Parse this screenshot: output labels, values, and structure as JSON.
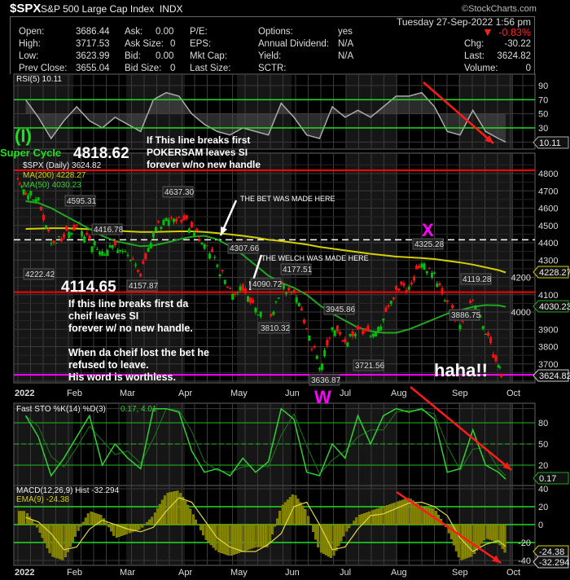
{
  "header": {
    "symbol": "$SPX",
    "name": "S&P 500 Large Cap Index",
    "exchange": "INDX",
    "brand": "©StockCharts.com"
  },
  "quote": {
    "datetime": "Tuesday  27-Sep-2022  1:56 pm",
    "open_label": "Open:",
    "open": "3686.44",
    "high_label": "High:",
    "high": "3717.53",
    "low_label": "Low:",
    "low": "3623.99",
    "prev_label": "Prev Close:",
    "prev": "3655.04",
    "ask_label": "Ask:",
    "ask": "0.00",
    "asksize_label": "Ask Size:",
    "asksize": "0",
    "bid_label": "Bid:",
    "bid": "0.00",
    "bidsize_label": "Bid Size:",
    "bidsize": "0",
    "pe_label": "P/E:",
    "eps_label": "EPS:",
    "mktcap_label": "Mkt Cap:",
    "lastsize_label": "Last Size:",
    "options_label": "Options:",
    "options": "yes",
    "div_label": "Annual Dividend:",
    "div": "N/A",
    "yield_label": "Yield:",
    "yield": "N/A",
    "sctr_label": "SCTR:",
    "pct": "-0.83%",
    "chg_label": "Chg:",
    "chg": "-30.22",
    "last_label": "Last:",
    "last": "3624.82",
    "vol_label": "Volume:",
    "vol": "0"
  },
  "colors": {
    "up": "#00c000",
    "down": "#ff1010",
    "ma200": "#d4d000",
    "ma50": "#1fa81f",
    "grid": "#3a3a3a",
    "magenta": "#ff00ff",
    "green_line": "#22dd22"
  },
  "chart_data": [
    {
      "type": "line",
      "panel": "RSI",
      "legend": "RSI(5) 10.11",
      "yticks": [
        "90",
        "70",
        "50",
        "30"
      ],
      "last_label": "10.11",
      "values": [
        70,
        45,
        15,
        40,
        60,
        40,
        30,
        45,
        35,
        25,
        70,
        80,
        75,
        50,
        35,
        25,
        20,
        30,
        25,
        20,
        65,
        45,
        20,
        15,
        60,
        45,
        55,
        45,
        60,
        75,
        75,
        80,
        60,
        25,
        20,
        55,
        25,
        15,
        10.11
      ]
    },
    {
      "type": "candlestick",
      "panel": "Price",
      "legend": "$SPX (Daily) 3624.82",
      "ma200_legend": "MA(200) 4228.27",
      "ma50_legend": "MA(50) 4030.23",
      "yticks": [
        "4800",
        "4700",
        "4600",
        "4500",
        "4400",
        "4300",
        "4200",
        "4100",
        "4000",
        "3900",
        "3800",
        "3700"
      ],
      "ylim": [
        3600,
        4850
      ],
      "weekly_close": [
        4677,
        4662,
        4397,
        4431,
        4500,
        4418,
        4349,
        4385,
        4329,
        4204,
        4463,
        4543,
        4546,
        4488,
        4392,
        4272,
        4132,
        4123,
        4024,
        3901,
        4158,
        4109,
        3901,
        3675,
        3912,
        3825,
        3899,
        3863,
        3962,
        4130,
        4145,
        4280,
        4228,
        4058,
        3924,
        4067,
        3873,
        3693,
        3624.82
      ],
      "ma200": [
        4480,
        4482,
        4484,
        4484,
        4482,
        4478,
        4474,
        4470,
        4466,
        4462,
        4462,
        4464,
        4466,
        4466,
        4462,
        4456,
        4448,
        4440,
        4430,
        4418,
        4410,
        4400,
        4390,
        4376,
        4366,
        4356,
        4346,
        4336,
        4328,
        4320,
        4316,
        4312,
        4306,
        4296,
        4286,
        4274,
        4258,
        4242,
        4228.27
      ],
      "ma50": [
        4640,
        4630,
        4600,
        4560,
        4520,
        4480,
        4440,
        4410,
        4395,
        4380,
        4385,
        4400,
        4420,
        4435,
        4440,
        4420,
        4380,
        4330,
        4270,
        4210,
        4170,
        4140,
        4100,
        4040,
        3990,
        3950,
        3910,
        3890,
        3880,
        3880,
        3900,
        3930,
        3960,
        3990,
        4010,
        4030,
        4040,
        4038,
        4030.23
      ],
      "ma200_last": "4228.27",
      "ma50_last": "4030.23",
      "last": "3624.82",
      "price_labels": [
        "4595.31",
        "4416.78",
        "4222.42",
        "4157.87",
        "4637.30",
        "4307.66",
        "4090.72",
        "4177.51",
        "3810.32",
        "3636.87",
        "3945.86",
        "3721.56",
        "4325.28",
        "4119.28",
        "3886.75"
      ],
      "hlines": [
        {
          "value": 4818.62,
          "color": "#ff0000"
        },
        {
          "value": 4114.65,
          "color": "#ff0000"
        },
        {
          "value": 4416.78,
          "color": "#ffffff",
          "style": "dashed"
        },
        {
          "value": 3636.87,
          "color": "#ff00ff"
        }
      ]
    },
    {
      "type": "line",
      "panel": "Fast STO",
      "legend": "Fast STO %K(14) %D(3)",
      "legend_values": "0.17, 4.01",
      "yticks": [
        "80",
        "50",
        "20"
      ],
      "last_label": "0.17",
      "values": [
        90,
        60,
        5,
        30,
        60,
        90,
        20,
        50,
        30,
        15,
        100,
        100,
        95,
        40,
        10,
        15,
        5,
        30,
        10,
        25,
        100,
        85,
        10,
        5,
        50,
        30,
        90,
        50,
        90,
        100,
        95,
        100,
        85,
        10,
        15,
        70,
        20,
        10,
        0.17
      ]
    },
    {
      "type": "bar+line",
      "panel": "MACD",
      "legend": "MACD(12,26,9) Hist -32.294",
      "ema_legend": "EMA(9) -24.38",
      "yticks": [
        "40",
        "20",
        "0",
        "-20",
        "-40"
      ],
      "hist": [
        15,
        -5,
        -35,
        -40,
        -10,
        15,
        10,
        -15,
        -10,
        -5,
        10,
        35,
        38,
        15,
        -15,
        -30,
        -35,
        -30,
        -25,
        -25,
        20,
        35,
        15,
        -30,
        -38,
        -10,
        10,
        15,
        20,
        25,
        30,
        20,
        18,
        -5,
        -40,
        -35,
        -15,
        -20,
        -32.294
      ],
      "ema": [
        8,
        3,
        -10,
        -28,
        -25,
        -5,
        5,
        0,
        -5,
        -8,
        -3,
        15,
        30,
        25,
        5,
        -15,
        -25,
        -30,
        -30,
        -22,
        -10,
        20,
        25,
        0,
        -28,
        -25,
        -5,
        10,
        12,
        18,
        24,
        25,
        20,
        10,
        -15,
        -30,
        -22,
        -18,
        -24.38
      ],
      "ema_last": "-24.38",
      "hist_last": "-32.294"
    }
  ],
  "months": [
    "2022",
    "Feb",
    "Mar",
    "Apr",
    "May",
    "Jun",
    "Jul",
    "Aug",
    "Sep",
    "Oct"
  ],
  "annotations": {
    "wave": "(I)",
    "super_cycle": "Super Cycle",
    "top_level": "4818.62",
    "top_note": [
      "If This line breaks first",
      "POKERSAM leaves SI",
      "forever w/no new handle"
    ],
    "mid_level": "4114.65",
    "mid_note": [
      "If this line breaks first da",
      "cheif leaves SI",
      "forever w/ no new handle.",
      "",
      "When da cheif lost the bet he",
      "refused to leave.",
      "His word is worthless."
    ],
    "bet": "THE BET WAS MADE HERE",
    "welch": "THE WELCH WAS MADE HERE",
    "x_mark": "X",
    "w_mark": "W",
    "haha": "haha!!"
  }
}
